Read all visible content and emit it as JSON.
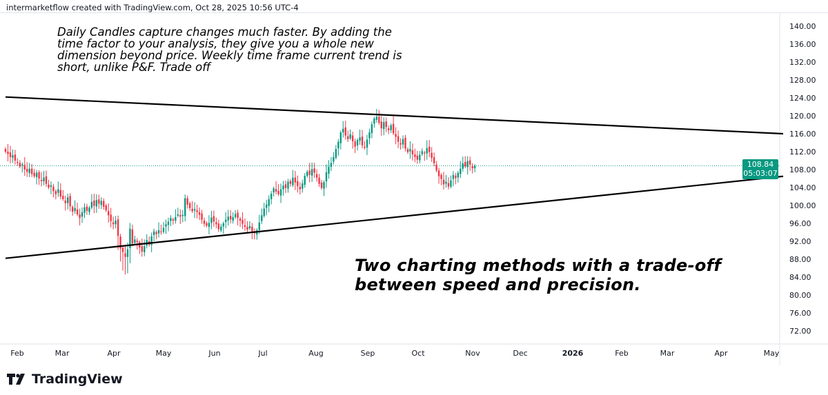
{
  "header": {
    "attribution": "intermarketflow created with TradingView.com, Oct 28, 2025 10:56 UTC-4"
  },
  "logo": {
    "text": "TradingView"
  },
  "annotations": {
    "note_top": "Daily Candles capture changes much faster. By adding the time factor to your analysis, they give you a whole new dimension beyond price. Weekly time frame current trend is short, unlike P&F. Trade off",
    "note_bottom_line1": "Two charting methods with a trade-off",
    "note_bottom_line2": "between speed and precision."
  },
  "price_tag": {
    "price": "108.84",
    "countdown": "05:03:07"
  },
  "chart_data": {
    "type": "candlestick",
    "ylim": [
      70,
      142
    ],
    "y_ticks": [
      "140.00",
      "136.00",
      "132.00",
      "128.00",
      "124.00",
      "120.00",
      "116.00",
      "112.00",
      "108.00",
      "104.00",
      "100.00",
      "96.00",
      "92.00",
      "88.00",
      "84.00",
      "80.00",
      "76.00",
      "72.00"
    ],
    "x_ticks": [
      "Feb",
      "Mar",
      "Apr",
      "May",
      "Jun",
      "Jul",
      "Aug",
      "Sep",
      "Oct",
      "Nov",
      "Dec",
      "2026",
      "Feb",
      "Mar",
      "Apr",
      "May"
    ],
    "colors": {
      "up": "#089981",
      "down": "#f23645",
      "trendline": "#000000",
      "last_price": "#089981"
    },
    "last_price": 108.84,
    "trendlines": [
      {
        "name": "upper",
        "from": 124.2,
        "to": 116.0
      },
      {
        "name": "lower",
        "from": 88.2,
        "to": 106.5
      }
    ],
    "closes": [
      112,
      111.5,
      110.8,
      111.2,
      110,
      109.5,
      108.7,
      109.2,
      108,
      107.5,
      108.2,
      107,
      106.5,
      107.3,
      106,
      105.4,
      106.2,
      104.8,
      104,
      104.5,
      103.2,
      102.5,
      103.6,
      102,
      101.4,
      100.5,
      101.8,
      99.8,
      98.6,
      99.4,
      98,
      97.2,
      98.5,
      99.6,
      98.8,
      99.5,
      100.8,
      99.9,
      101.2,
      100.4,
      101,
      99.7,
      98.9,
      97.8,
      96.5,
      95.8,
      96.6,
      93.2,
      90.4,
      89.6,
      88.5,
      90.2,
      94.8,
      91.5,
      92.4,
      91.8,
      90.6,
      89.7,
      90.9,
      92.3,
      91.2,
      93.1,
      94.2,
      93.6,
      94.5,
      94.1,
      95,
      95.8,
      96.4,
      97.2,
      96.6,
      97.4,
      98,
      97.5,
      97.9,
      101.6,
      100.2,
      99.4,
      98.7,
      99.2,
      98.5,
      97.9,
      96.8,
      95.9,
      95.5,
      96.1,
      97.3,
      96.4,
      95.8,
      94.7,
      95.3,
      96,
      96.8,
      97.5,
      96.9,
      97.4,
      98.1,
      97.2,
      96.6,
      95.9,
      95.2,
      94.6,
      95.4,
      94.1,
      93.8,
      94.5,
      96.2,
      97.8,
      99.3,
      100.2,
      101.4,
      102.6,
      103.8,
      103.1,
      102.5,
      103.6,
      104.4,
      103.9,
      105.3,
      104.8,
      106.2,
      105.1,
      104.3,
      103.6,
      104.9,
      106.6,
      107.5,
      106.8,
      108.1,
      107.3,
      106.2,
      104.8,
      103.9,
      105.2,
      107.4,
      108.6,
      109.5,
      110.8,
      112.6,
      114.2,
      116.3,
      117.1,
      115.6,
      114.8,
      115.9,
      114.3,
      113.1,
      114.6,
      115.2,
      113.4,
      112.9,
      114.7,
      116.3,
      118.1,
      119.4,
      119.8,
      118.4,
      117.2,
      118.6,
      117.5,
      116.8,
      117.9,
      116.1,
      115.3,
      114.2,
      113.6,
      114.8,
      112.7,
      111.9,
      112.6,
      111.4,
      110.8,
      110.2,
      111.3,
      112.1,
      111.6,
      112.8,
      111.9,
      110.6,
      109.4,
      107.8,
      106.5,
      105.9,
      104.7,
      105.3,
      104.2,
      105.6,
      106.8,
      106.1,
      107.3,
      108.2,
      109.4,
      108.7,
      109.9,
      109.1,
      108.3,
      108.84
    ]
  }
}
